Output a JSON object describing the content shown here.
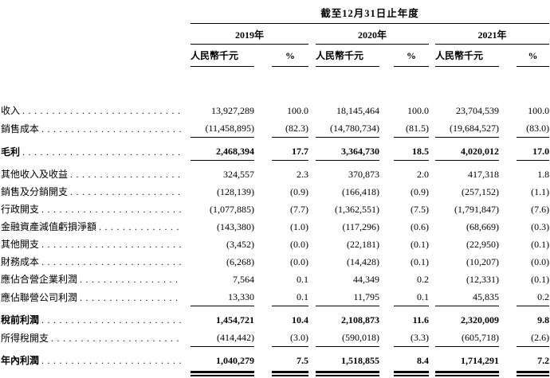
{
  "colors": {
    "ink": "#000000",
    "background": "#ffffff"
  },
  "table": {
    "title": "截至12月31日止年度",
    "years": [
      "2019年",
      "2020年",
      "2021年"
    ],
    "amount_header": "人民幣千元",
    "pct_header": "%",
    "rows": [
      {
        "label": "收入",
        "a2019": "13,927,289",
        "p2019": "100.0",
        "a2020": "18,145,464",
        "p2020": "100.0",
        "a2021": "23,704,539",
        "p2021": "100.0"
      },
      {
        "label": "銷售成本",
        "a2019": "(11,458,895)",
        "p2019": "(82.3)",
        "a2020": "(14,780,734)",
        "p2020": "(81.5)",
        "a2021": "(19,684,527)",
        "p2021": "(83.0)"
      },
      {
        "label": "毛利",
        "a2019": "2,468,394",
        "p2019": "17.7",
        "a2020": "3,364,730",
        "p2020": "18.5",
        "a2021": "4,020,012",
        "p2021": "17.0"
      },
      {
        "label": "其他收入及收益",
        "a2019": "324,557",
        "p2019": "2.3",
        "a2020": "370,873",
        "p2020": "2.0",
        "a2021": "417,318",
        "p2021": "1.8"
      },
      {
        "label": "銷售及分銷開支",
        "a2019": "(128,139)",
        "p2019": "(0.9)",
        "a2020": "(166,418)",
        "p2020": "(0.9)",
        "a2021": "(257,152)",
        "p2021": "(1.1)"
      },
      {
        "label": "行政開支",
        "a2019": "(1,077,885)",
        "p2019": "(7.7)",
        "a2020": "(1,362,551)",
        "p2020": "(7.5)",
        "a2021": "(1,791,847)",
        "p2021": "(7.6)"
      },
      {
        "label": "金融資產減值虧損淨額",
        "a2019": "(143,380)",
        "p2019": "(1.0)",
        "a2020": "(117,296)",
        "p2020": "(0.6)",
        "a2021": "(68,669)",
        "p2021": "(0.3)"
      },
      {
        "label": "其他開支",
        "a2019": "(3,452)",
        "p2019": "(0.0)",
        "a2020": "(22,181)",
        "p2020": "(0.1)",
        "a2021": "(22,950)",
        "p2021": "(0.1)"
      },
      {
        "label": "財務成本",
        "a2019": "(6,268)",
        "p2019": "(0.0)",
        "a2020": "(14,428)",
        "p2020": "(0.1)",
        "a2021": "(10,207)",
        "p2021": "(0.0)"
      },
      {
        "label": "應佔合營企業利潤",
        "a2019": "7,564",
        "p2019": "0.1",
        "a2020": "44,349",
        "p2020": "0.2",
        "a2021": "(12,331)",
        "p2021": "(0.1)"
      },
      {
        "label": "應佔聯營公司利潤",
        "a2019": "13,330",
        "p2019": "0.1",
        "a2020": "11,795",
        "p2020": "0.1",
        "a2021": "45,835",
        "p2021": "0.2"
      },
      {
        "label": "稅前利潤",
        "a2019": "1,454,721",
        "p2019": "10.4",
        "a2020": "2,108,873",
        "p2020": "11.6",
        "a2021": "2,320,009",
        "p2021": "9.8"
      },
      {
        "label": "所得稅開支",
        "a2019": "(414,442)",
        "p2019": "(3.0)",
        "a2020": "(590,018)",
        "p2020": "(3.3)",
        "a2021": "(605,718)",
        "p2021": "(2.6)"
      },
      {
        "label": "年內利潤",
        "a2019": "1,040,279",
        "p2019": "7.5",
        "a2020": "1,518,855",
        "p2020": "8.4",
        "a2021": "1,714,291",
        "p2021": "7.2"
      }
    ]
  }
}
